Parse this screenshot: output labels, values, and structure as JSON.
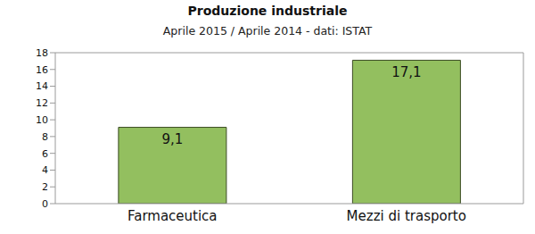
{
  "chart_data": {
    "type": "bar",
    "title": "Produzione industriale",
    "subtitle": "Aprile 2015 / Aprile 2014 - dati: ISTAT",
    "categories": [
      "Farmaceutica",
      "Mezzi di trasporto"
    ],
    "values": [
      9.1,
      17.1
    ],
    "value_labels": [
      "9,1",
      "17,1"
    ],
    "data_labels": true,
    "color": "#93bf5f",
    "ylim": [
      0,
      18
    ],
    "yticks": [
      0,
      2,
      4,
      6,
      8,
      10,
      12,
      14,
      16,
      18
    ],
    "grid": false
  }
}
